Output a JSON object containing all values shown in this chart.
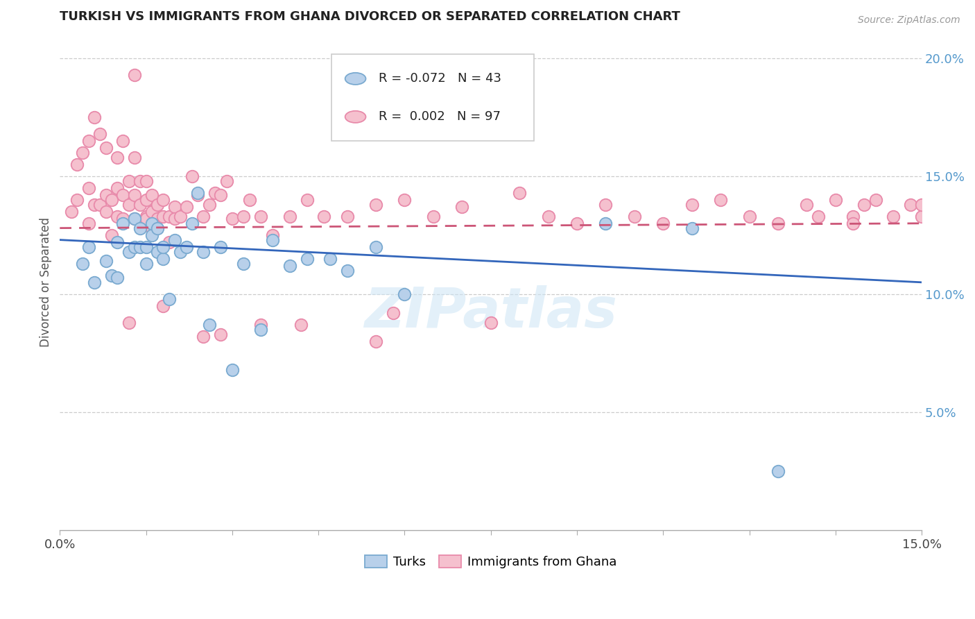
{
  "title": "TURKISH VS IMMIGRANTS FROM GHANA DIVORCED OR SEPARATED CORRELATION CHART",
  "source_text": "Source: ZipAtlas.com",
  "ylabel": "Divorced or Separated",
  "x_min": 0.0,
  "x_max": 0.15,
  "y_min": 0.0,
  "y_max": 0.21,
  "y_ticks": [
    0.05,
    0.1,
    0.15,
    0.2
  ],
  "y_tick_labels": [
    "5.0%",
    "10.0%",
    "15.0%",
    "20.0%"
  ],
  "legend_blue_r": "-0.072",
  "legend_blue_n": "43",
  "legend_pink_r": "0.002",
  "legend_pink_n": "97",
  "blue_fill": "#b8d0ea",
  "blue_edge": "#7aaad0",
  "pink_fill": "#f5c0ce",
  "pink_edge": "#e88aaa",
  "blue_line_color": "#3366bb",
  "pink_line_color": "#cc5577",
  "watermark": "ZIPatlas",
  "blue_line_y0": 0.123,
  "blue_line_y1": 0.105,
  "pink_line_y0": 0.128,
  "pink_line_y1": 0.13,
  "turks_x": [
    0.004,
    0.005,
    0.006,
    0.008,
    0.009,
    0.01,
    0.01,
    0.011,
    0.012,
    0.013,
    0.013,
    0.014,
    0.014,
    0.015,
    0.015,
    0.016,
    0.016,
    0.017,
    0.017,
    0.018,
    0.018,
    0.019,
    0.02,
    0.021,
    0.022,
    0.023,
    0.024,
    0.025,
    0.026,
    0.028,
    0.03,
    0.032,
    0.035,
    0.037,
    0.04,
    0.043,
    0.047,
    0.05,
    0.055,
    0.06,
    0.095,
    0.11,
    0.125
  ],
  "turks_y": [
    0.113,
    0.12,
    0.105,
    0.114,
    0.108,
    0.122,
    0.107,
    0.13,
    0.118,
    0.12,
    0.132,
    0.12,
    0.128,
    0.12,
    0.113,
    0.125,
    0.13,
    0.118,
    0.128,
    0.115,
    0.12,
    0.098,
    0.123,
    0.118,
    0.12,
    0.13,
    0.143,
    0.118,
    0.087,
    0.12,
    0.068,
    0.113,
    0.085,
    0.123,
    0.112,
    0.115,
    0.115,
    0.11,
    0.12,
    0.1,
    0.13,
    0.128,
    0.025
  ],
  "ghana_x": [
    0.002,
    0.003,
    0.003,
    0.004,
    0.005,
    0.005,
    0.005,
    0.006,
    0.006,
    0.007,
    0.007,
    0.008,
    0.008,
    0.008,
    0.009,
    0.009,
    0.01,
    0.01,
    0.01,
    0.011,
    0.011,
    0.011,
    0.012,
    0.012,
    0.013,
    0.013,
    0.013,
    0.013,
    0.014,
    0.014,
    0.015,
    0.015,
    0.015,
    0.015,
    0.016,
    0.016,
    0.016,
    0.017,
    0.017,
    0.018,
    0.018,
    0.019,
    0.019,
    0.02,
    0.02,
    0.021,
    0.022,
    0.023,
    0.024,
    0.025,
    0.026,
    0.027,
    0.028,
    0.029,
    0.03,
    0.032,
    0.033,
    0.035,
    0.037,
    0.04,
    0.043,
    0.046,
    0.05,
    0.055,
    0.06,
    0.065,
    0.07,
    0.08,
    0.085,
    0.09,
    0.095,
    0.1,
    0.105,
    0.11,
    0.115,
    0.12,
    0.125,
    0.13,
    0.132,
    0.135,
    0.138,
    0.14,
    0.142,
    0.145,
    0.148,
    0.15,
    0.15,
    0.138,
    0.058,
    0.042,
    0.028,
    0.018,
    0.012,
    0.025,
    0.035,
    0.055,
    0.075
  ],
  "ghana_y": [
    0.135,
    0.155,
    0.14,
    0.16,
    0.145,
    0.13,
    0.165,
    0.138,
    0.175,
    0.138,
    0.168,
    0.142,
    0.162,
    0.135,
    0.125,
    0.14,
    0.133,
    0.145,
    0.158,
    0.132,
    0.142,
    0.165,
    0.138,
    0.148,
    0.142,
    0.158,
    0.132,
    0.193,
    0.138,
    0.148,
    0.133,
    0.14,
    0.148,
    0.132,
    0.128,
    0.135,
    0.142,
    0.138,
    0.132,
    0.133,
    0.14,
    0.133,
    0.122,
    0.137,
    0.132,
    0.133,
    0.137,
    0.15,
    0.142,
    0.133,
    0.138,
    0.143,
    0.142,
    0.148,
    0.132,
    0.133,
    0.14,
    0.133,
    0.125,
    0.133,
    0.14,
    0.133,
    0.133,
    0.138,
    0.14,
    0.133,
    0.137,
    0.143,
    0.133,
    0.13,
    0.138,
    0.133,
    0.13,
    0.138,
    0.14,
    0.133,
    0.13,
    0.138,
    0.133,
    0.14,
    0.133,
    0.138,
    0.14,
    0.133,
    0.138,
    0.133,
    0.138,
    0.13,
    0.092,
    0.087,
    0.083,
    0.095,
    0.088,
    0.082,
    0.087,
    0.08,
    0.088
  ]
}
